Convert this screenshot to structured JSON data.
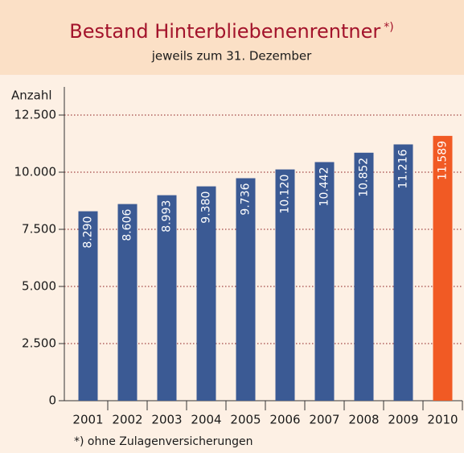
{
  "chart_data": {
    "type": "bar",
    "title": "Bestand Hinterbliebenenrentner",
    "title_note": "*)",
    "subtitle": "jeweils zum 31. Dezember",
    "y_label": "Anzahl",
    "footnote": "*) ohne Zulagenversicherungen",
    "categories": [
      "2001",
      "2002",
      "2003",
      "2004",
      "2005",
      "2006",
      "2007",
      "2008",
      "2009",
      "2010"
    ],
    "values": [
      8290,
      8606,
      8993,
      9380,
      9736,
      10120,
      10442,
      10852,
      11216,
      11589
    ],
    "value_labels": [
      "8.290",
      "8.606",
      "8.993",
      "9.380",
      "9.736",
      "10.120",
      "10.442",
      "10.852",
      "11.216",
      "11.589"
    ],
    "colors": [
      "#3b5a94",
      "#3b5a94",
      "#3b5a94",
      "#3b5a94",
      "#3b5a94",
      "#3b5a94",
      "#3b5a94",
      "#3b5a94",
      "#3b5a94",
      "#f15a24"
    ],
    "ylim": [
      0,
      12500
    ],
    "yticks": [
      0,
      {
        "value": 2500,
        "label": "2.500"
      },
      {
        "value": 5000,
        "label": "5.000"
      },
      {
        "value": 7500,
        "label": "7.500"
      },
      {
        "value": 10000,
        "label": "10.000"
      },
      {
        "value": 12500,
        "label": "12.500"
      }
    ],
    "grid": true
  }
}
